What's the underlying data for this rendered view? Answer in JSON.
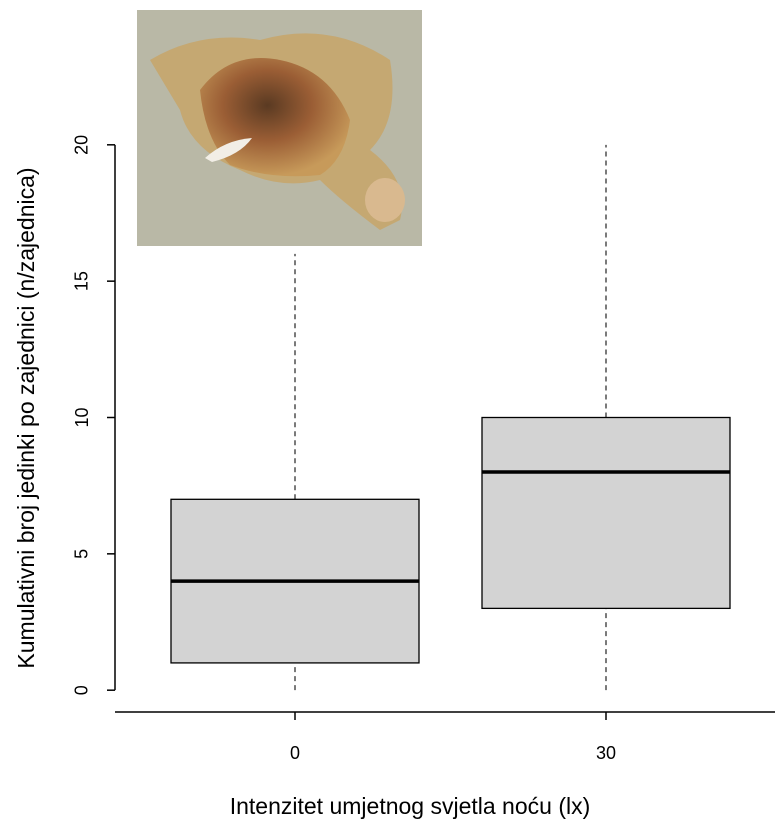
{
  "chart_data": {
    "type": "box",
    "x_label": "Intenzitet umjetnog svjetla noću (lx)",
    "y_label": "Kumulativni broj jedinki po zajednici (n/zajednica)",
    "categories": [
      "0",
      "30"
    ],
    "boxes": [
      {
        "min": 0,
        "q1": 1,
        "median": 4,
        "q3": 7,
        "max": 16
      },
      {
        "min": 0,
        "q1": 3,
        "median": 8,
        "q3": 10,
        "max": 20
      }
    ],
    "color": "#d3d3d3",
    "ylim": [
      -0.8,
      20.8
    ],
    "yticks": [
      0,
      5,
      10,
      15,
      20
    ]
  }
}
